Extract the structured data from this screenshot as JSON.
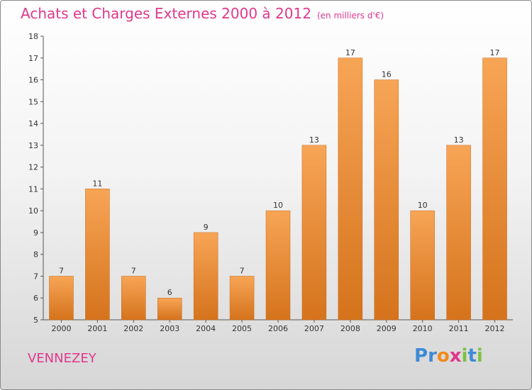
{
  "title": "Achats et Charges Externes 2000 à 2012",
  "subtitle": "(en milliers d'€)",
  "commune": "VENNEZEY",
  "logo": {
    "letters": [
      "P",
      "r",
      "o",
      "x",
      "i",
      "t",
      "i"
    ],
    "colors": [
      "#3d8bd6",
      "#3d8bd6",
      "#f08a1c",
      "#e0388c",
      "#7cc242",
      "#3d8bd6",
      "#7cc242"
    ]
  },
  "colors": {
    "accent": "#e0388c",
    "bar_light": "#f7a556",
    "bar_dark": "#d5731c"
  },
  "chart_data": {
    "type": "bar",
    "categories": [
      "2000",
      "2001",
      "2002",
      "2003",
      "2004",
      "2005",
      "2006",
      "2007",
      "2008",
      "2009",
      "2010",
      "2011",
      "2012"
    ],
    "values": [
      7,
      11,
      7,
      6,
      9,
      7,
      10,
      13,
      17,
      16,
      10,
      13,
      17
    ],
    "ylim": [
      5,
      18
    ],
    "yticks": [
      5,
      6,
      7,
      8,
      9,
      10,
      11,
      12,
      13,
      14,
      15,
      16,
      17,
      18
    ],
    "grid": false,
    "legend": "none"
  }
}
